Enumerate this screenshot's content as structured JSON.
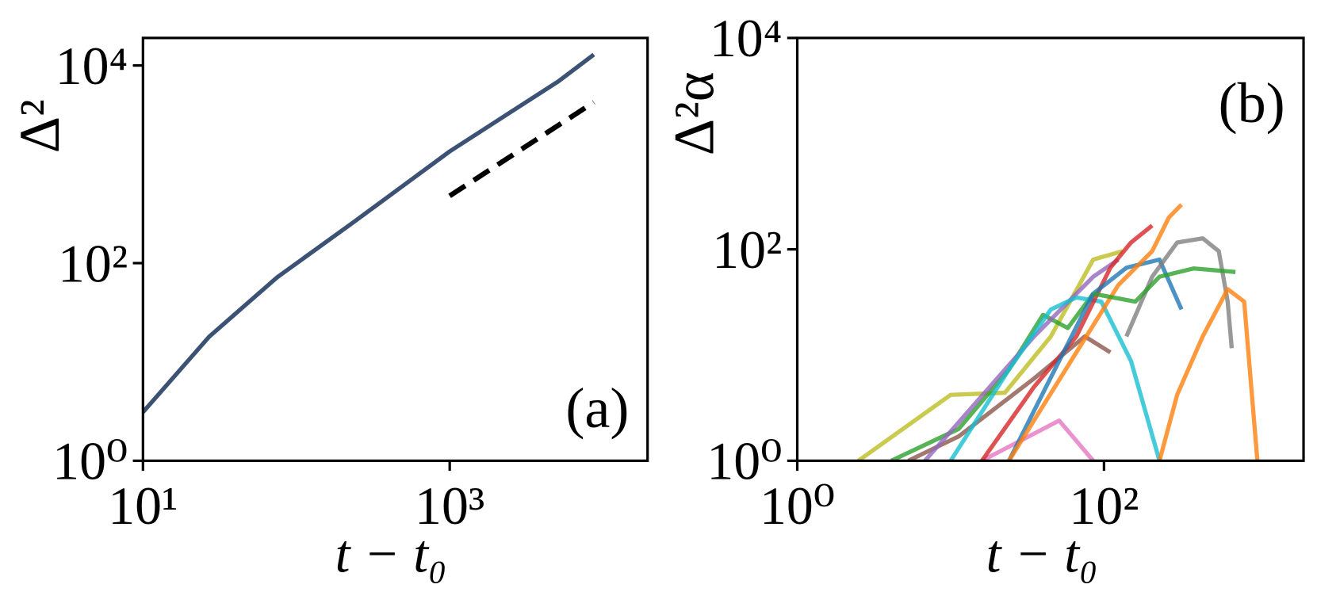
{
  "chart_data": [
    {
      "type": "line",
      "annotation": "(a)",
      "xlabel": "t − t₀",
      "ylabel": "Δ²",
      "xscale": "log",
      "yscale": "log",
      "xlim": [
        10,
        19500
      ],
      "ylim": [
        1,
        19000
      ],
      "xticks": [
        {
          "value": 10,
          "label": "10¹"
        },
        {
          "value": 1000,
          "label": "10³"
        }
      ],
      "yticks": [
        {
          "value": 1,
          "label": "10⁰"
        },
        {
          "value": 100,
          "label": "10²"
        },
        {
          "value": 10000,
          "label": "10⁴"
        }
      ],
      "series": [
        {
          "color": "#3b5274",
          "x": [
            10,
            27,
            75,
            234,
            1000,
            5100,
            8700
          ],
          "values": [
            3.1,
            18,
            72,
            257,
            1350,
            6900,
            12900
          ]
        },
        {
          "color": "#000000",
          "dashed": true,
          "x": [
            1000,
            8700
          ],
          "values": [
            479,
            4250
          ]
        }
      ]
    },
    {
      "type": "line",
      "annotation": "(b)",
      "xlabel": "t − t₀",
      "ylabel": "Δ²α",
      "xscale": "log",
      "yscale": "log",
      "xlim": [
        1,
        2000
      ],
      "ylim": [
        1,
        10000
      ],
      "xticks": [
        {
          "value": 1,
          "label": "10⁰"
        },
        {
          "value": 100,
          "label": "10²"
        }
      ],
      "yticks": [
        {
          "value": 1,
          "label": "10⁰"
        },
        {
          "value": 100,
          "label": "10²"
        },
        {
          "value": 10000,
          "label": "10⁴"
        }
      ],
      "series": [
        {
          "color": "#bcbd22",
          "x": [
            2.5,
            10,
            22.6,
            45,
            85,
            132
          ],
          "values": [
            1,
            4.2,
            4.4,
            15,
            80,
            96
          ]
        },
        {
          "color": "#8c564b",
          "x": [
            5.3,
            11.3,
            35,
            75,
            110
          ],
          "values": [
            1,
            1.7,
            6,
            15,
            10.6
          ]
        },
        {
          "color": "#2ca02c",
          "x": [
            4.1,
            11.3,
            24,
            40,
            58,
            85
          ],
          "values": [
            1,
            2,
            7.3,
            24,
            18,
            38
          ]
        },
        {
          "color": "#9467bd",
          "x": [
            6.8,
            14.5,
            35,
            85,
            124
          ],
          "values": [
            1,
            3.5,
            15,
            55,
            80
          ]
        },
        {
          "color": "#17becf",
          "x": [
            10,
            24,
            45,
            66,
            96,
            150,
            230
          ],
          "values": [
            1,
            7.3,
            27,
            35,
            32,
            8.8,
            1
          ]
        },
        {
          "color": "#e377c2",
          "x": [
            16,
            51,
            85
          ],
          "values": [
            1,
            2.4,
            1
          ]
        },
        {
          "color": "#d62728",
          "x": [
            16,
            35,
            66,
            110,
            150,
            206
          ],
          "values": [
            1,
            5,
            15,
            67,
            116,
            168
          ]
        },
        {
          "color": "#1f77b4",
          "x": [
            24,
            51,
            85,
            140,
            230,
            320
          ],
          "values": [
            1,
            8.8,
            38,
            67,
            80,
            27
          ]
        },
        {
          "color": "#ff7f0e",
          "x": [
            24,
            66,
            124,
            206,
            265,
            320
          ],
          "values": [
            1,
            10.6,
            46,
            96,
            200,
            265
          ]
        },
        {
          "color": "#7f7f7f",
          "x": [
            140,
            206,
            300,
            440,
            560,
            640,
            680
          ],
          "values": [
            15,
            55,
            116,
            127,
            96,
            32,
            11.6
          ]
        },
        {
          "color": "#2ca02c",
          "x": [
            85,
            160,
            230,
            385,
            720
          ],
          "values": [
            38,
            32,
            55,
            66,
            61
          ]
        },
        {
          "color": "#ff7f0e",
          "x": [
            230,
            300,
            440,
            640,
            820,
            1000
          ],
          "values": [
            1,
            4.2,
            15,
            42,
            32,
            1
          ]
        }
      ]
    }
  ]
}
